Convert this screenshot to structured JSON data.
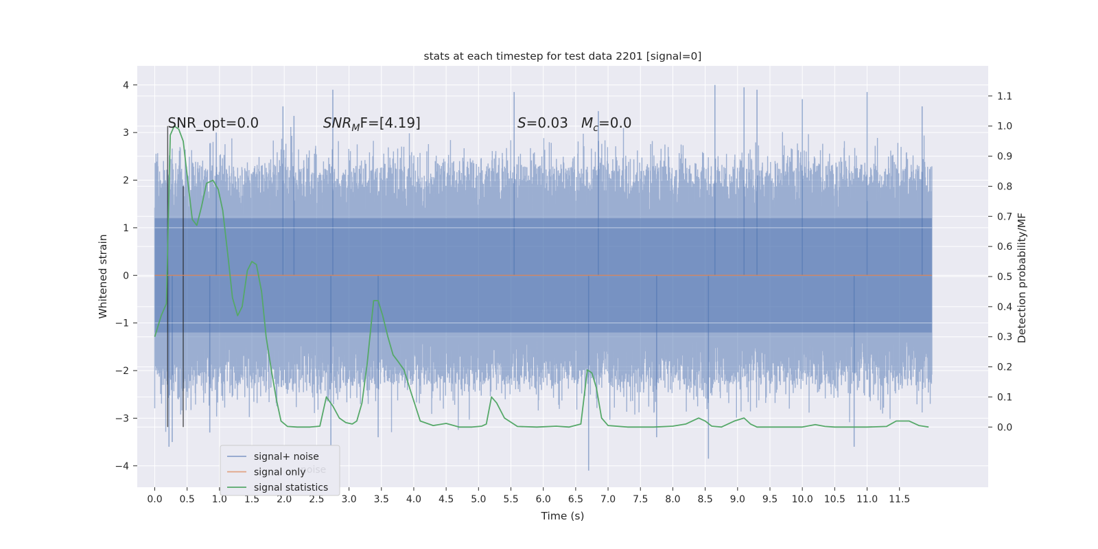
{
  "chart_data": {
    "type": "line",
    "title": "stats at each timestep for test data 2201 [signal=0]",
    "xlabel": "Time (s)",
    "ylabel": "Whitened strain",
    "ylabel_right": "Detection probability/MF",
    "xlim": [
      -0.27,
      12.87
    ],
    "ylim": [
      -4.45,
      4.4
    ],
    "ylim_right": [
      -0.2,
      1.2
    ],
    "x_ticks": [
      0.0,
      0.5,
      1.0,
      1.5,
      2.0,
      2.5,
      3.0,
      3.5,
      4.0,
      4.5,
      5.0,
      5.5,
      6.0,
      6.5,
      7.0,
      7.5,
      8.0,
      8.5,
      9.0,
      9.5,
      10.0,
      10.5,
      11.0,
      11.5
    ],
    "x_tick_labels": [
      "0.0",
      "0.5",
      "1.0",
      "1.5",
      "2.0",
      "2.5",
      "3.0",
      "3.5",
      "4.0",
      "4.5",
      "5.0",
      "5.5",
      "6.0",
      "6.5",
      "7.0",
      "7.5",
      "8.0",
      "8.5",
      "9.0",
      "9.5",
      "10.0",
      "10.5",
      "11.0",
      "11.5"
    ],
    "y_ticks": [
      -4,
      -3,
      -2,
      -1,
      0,
      1,
      2,
      3,
      4
    ],
    "y_tick_labels": [
      "−4",
      "−3",
      "−2",
      "−1",
      "0",
      "1",
      "2",
      "3",
      "4"
    ],
    "y_right_ticks": [
      0.0,
      0.1,
      0.2,
      0.3,
      0.4,
      0.5,
      0.6,
      0.7,
      0.8,
      0.9,
      1.0,
      1.1
    ],
    "y_right_tick_labels": [
      "0.0",
      "0.1",
      "0.2",
      "0.3",
      "0.4",
      "0.5",
      "0.6",
      "0.7",
      "0.8",
      "0.9",
      "1.0",
      "1.1"
    ],
    "grid": true,
    "legend_position": "lower-left",
    "series": [
      {
        "name": "signal+ noise",
        "color": "#4c72b0",
        "axis": "left",
        "x_range": [
          0.0,
          12.0
        ],
        "envelope_typical": [
          -2.3,
          2.3
        ],
        "envelope_extreme": [
          -4.1,
          4.0
        ],
        "peaks": [
          {
            "x": 0.22,
            "y": -3.6
          },
          {
            "x": 0.27,
            "y": -3.5
          },
          {
            "x": 0.85,
            "y": -3.3
          },
          {
            "x": 0.95,
            "y": 3.0
          },
          {
            "x": 1.98,
            "y": 3.55
          },
          {
            "x": 2.15,
            "y": 3.35
          },
          {
            "x": 2.75,
            "y": 3.9
          },
          {
            "x": 2.72,
            "y": -3.7
          },
          {
            "x": 3.45,
            "y": -3.4
          },
          {
            "x": 5.55,
            "y": 3.85
          },
          {
            "x": 6.7,
            "y": -4.1
          },
          {
            "x": 6.85,
            "y": 3.45
          },
          {
            "x": 7.75,
            "y": -3.4
          },
          {
            "x": 8.55,
            "y": -3.85
          },
          {
            "x": 8.65,
            "y": 4.0
          },
          {
            "x": 9.1,
            "y": 3.95
          },
          {
            "x": 9.3,
            "y": 3.9
          },
          {
            "x": 10.0,
            "y": 3.7
          },
          {
            "x": 10.8,
            "y": -3.6
          },
          {
            "x": 11.0,
            "y": 3.85
          },
          {
            "x": 11.85,
            "y": 3.55
          }
        ]
      },
      {
        "name": "signal only",
        "color": "#dd8452",
        "axis": "left",
        "x": [
          0.0,
          12.0
        ],
        "y": [
          0.0,
          0.0
        ]
      },
      {
        "name": "signal statistics",
        "color": "#55a868",
        "axis": "right",
        "x": [
          0.0,
          0.1,
          0.18,
          0.24,
          0.3,
          0.37,
          0.44,
          0.52,
          0.58,
          0.65,
          0.72,
          0.8,
          0.9,
          0.98,
          1.05,
          1.13,
          1.2,
          1.28,
          1.35,
          1.43,
          1.5,
          1.57,
          1.65,
          1.72,
          1.8,
          1.88,
          1.95,
          2.05,
          2.2,
          2.4,
          2.55,
          2.65,
          2.75,
          2.85,
          2.95,
          3.05,
          3.12,
          3.2,
          3.28,
          3.38,
          3.45,
          3.52,
          3.6,
          3.68,
          3.75,
          3.85,
          3.95,
          4.1,
          4.3,
          4.5,
          4.7,
          4.9,
          5.05,
          5.12,
          5.2,
          5.28,
          5.4,
          5.6,
          5.9,
          6.2,
          6.4,
          6.58,
          6.68,
          6.75,
          6.82,
          6.9,
          7.0,
          7.3,
          7.7,
          8.0,
          8.2,
          8.4,
          8.5,
          8.6,
          8.75,
          8.95,
          9.1,
          9.2,
          9.3,
          9.6,
          10.0,
          10.2,
          10.35,
          10.5,
          11.0,
          11.3,
          11.45,
          11.65,
          11.8,
          11.95
        ],
        "y": [
          0.3,
          0.37,
          0.41,
          0.97,
          1.0,
          0.99,
          0.95,
          0.8,
          0.69,
          0.67,
          0.73,
          0.81,
          0.82,
          0.79,
          0.72,
          0.57,
          0.43,
          0.37,
          0.4,
          0.52,
          0.55,
          0.54,
          0.45,
          0.3,
          0.19,
          0.09,
          0.02,
          0.002,
          0.0,
          0.0,
          0.003,
          0.1,
          0.07,
          0.03,
          0.015,
          0.01,
          0.02,
          0.08,
          0.21,
          0.42,
          0.42,
          0.37,
          0.3,
          0.24,
          0.22,
          0.19,
          0.12,
          0.02,
          0.005,
          0.012,
          0.0,
          0.0,
          0.003,
          0.01,
          0.1,
          0.08,
          0.03,
          0.002,
          0.0,
          0.003,
          0.0,
          0.01,
          0.19,
          0.18,
          0.13,
          0.03,
          0.005,
          0.0,
          0.0,
          0.003,
          0.01,
          0.03,
          0.02,
          0.003,
          0.0,
          0.02,
          0.03,
          0.01,
          0.0,
          0.0,
          0.0,
          0.008,
          0.002,
          0.0,
          0.0,
          0.002,
          0.02,
          0.02,
          0.005,
          0.0
        ]
      }
    ],
    "vlines": [
      {
        "x": 0.2,
        "y_right_range": [
          0.0,
          1.0
        ],
        "color": "#262626"
      },
      {
        "x": 0.44,
        "y_right_range": [
          0.0,
          0.8
        ],
        "color": "#262626"
      }
    ],
    "annotations": [
      {
        "text": "SNR_opt=0.0",
        "x": 0.2,
        "y": 3.1
      },
      {
        "text_main": "SNR",
        "text_sub": "M",
        "text_tail": "F=[4.19]",
        "x": 2.6,
        "y": 3.1
      },
      {
        "text_main": "S",
        "text_tail": "=0.03   ",
        "text_main2": "M",
        "text_sub2": "c",
        "text_tail2": "=0.0",
        "x": 5.6,
        "y": 3.1
      }
    ],
    "legend_ghost": "noise"
  }
}
